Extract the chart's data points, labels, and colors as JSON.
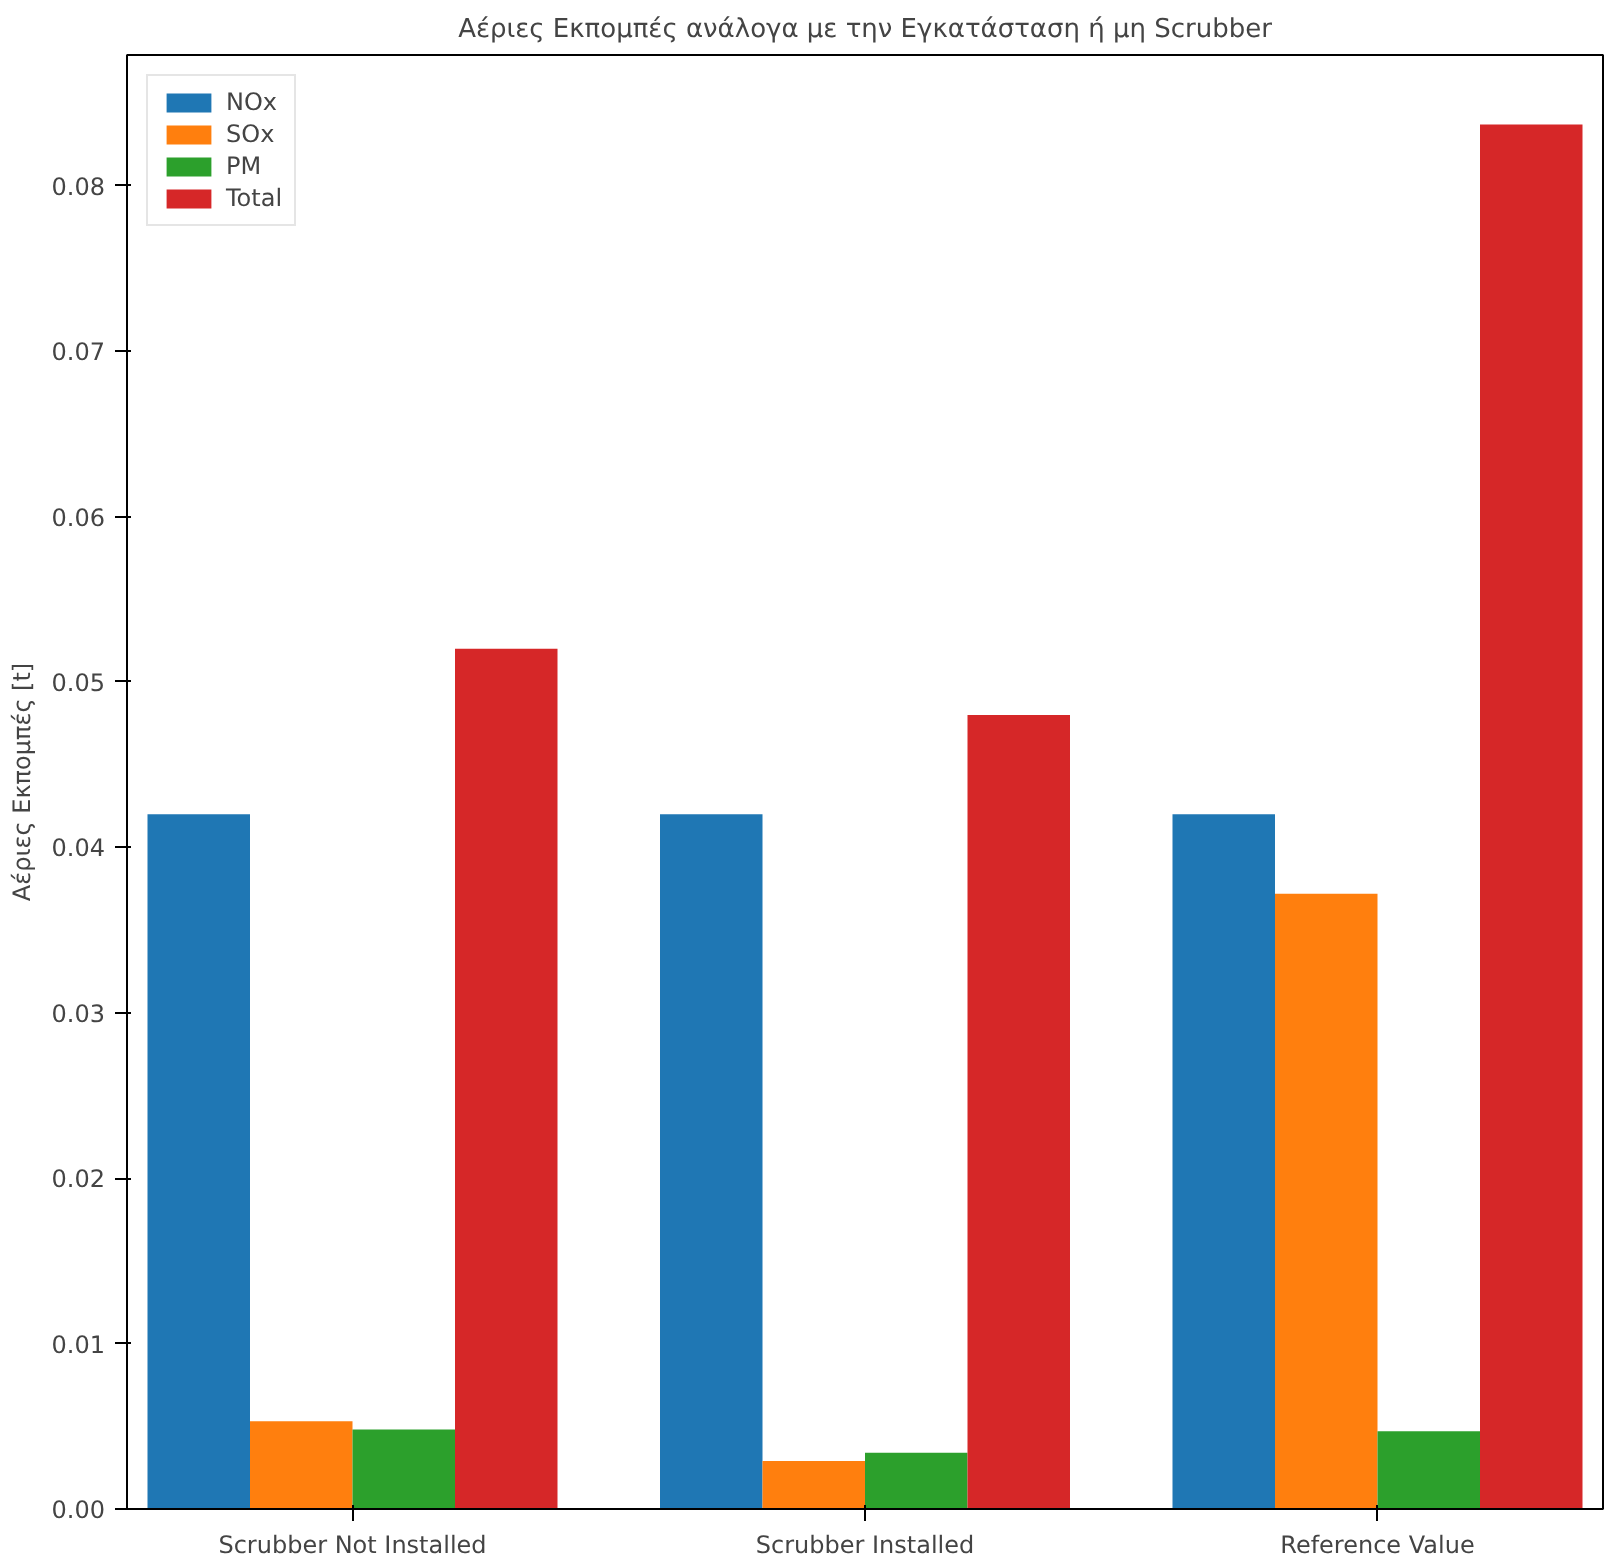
{
  "chart_data": {
    "type": "bar",
    "title": "Αέριες Εκπομπές ανάλογα με την Εγκατάσταση ή μη Scrubber",
    "ylabel": "Αέριες Εκπομπές [t]",
    "categories": [
      "Scrubber Not Installed",
      "Scrubber Installed",
      "Reference Value"
    ],
    "series": [
      {
        "name": "NOx",
        "color": "#1f77b4",
        "values": [
          0.042,
          0.042,
          0.042
        ]
      },
      {
        "name": "SOx",
        "color": "#ff7f0e",
        "values": [
          0.0053,
          0.0029,
          0.0372
        ]
      },
      {
        "name": "PM",
        "color": "#2ca02c",
        "values": [
          0.0048,
          0.0034,
          0.0047
        ]
      },
      {
        "name": "Total",
        "color": "#d62728",
        "values": [
          0.052,
          0.048,
          0.0837
        ]
      }
    ],
    "ylim": [
      0,
      0.0879
    ],
    "yticks": [
      {
        "value": 0,
        "label": "0.00"
      },
      0.01,
      0.02,
      0.03,
      0.04,
      0.05,
      0.06,
      0.07,
      0.08
    ],
    "grid": false,
    "legend": "top left"
  }
}
